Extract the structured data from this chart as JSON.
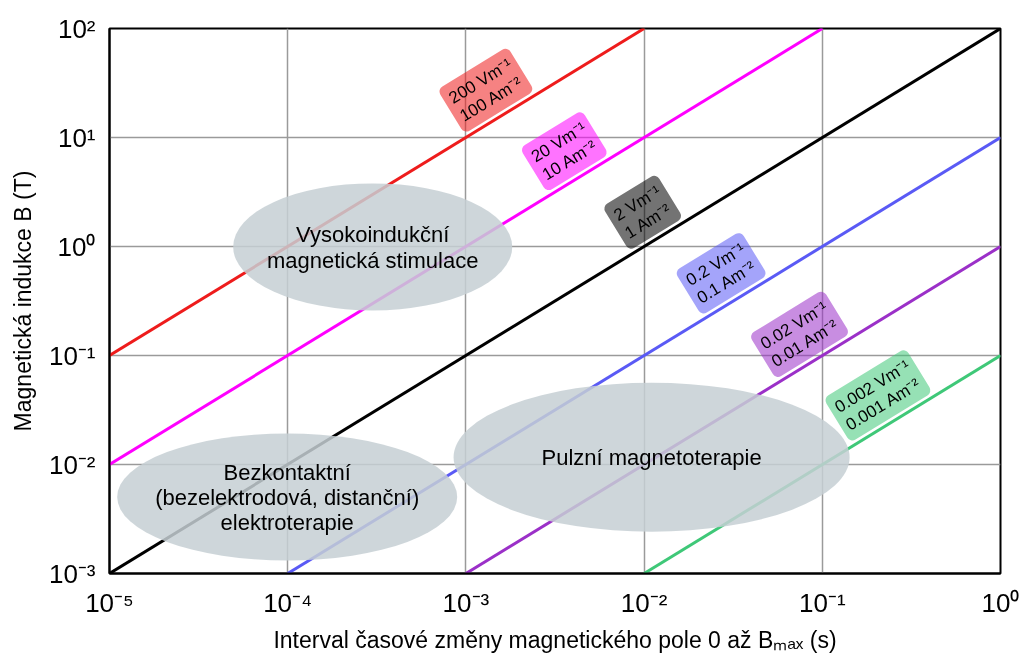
{
  "chart_data": {
    "type": "line",
    "xlabel": "Interval časové změny magnetického pole 0 až Bₘₐₓ (s)",
    "ylabel": "Magnetická indukce B (T)",
    "log": "xy",
    "xlim": [
      1e-05,
      1
    ],
    "ylim": [
      0.001,
      100
    ],
    "xticks": [
      {
        "value": 1e-05,
        "label": "10⁻⁵"
      },
      {
        "value": 0.0001,
        "label": "10⁻⁴"
      },
      {
        "value": 0.001,
        "label": "10⁻³"
      },
      {
        "value": 0.01,
        "label": "10⁻²"
      },
      {
        "value": 0.1,
        "label": "10⁻¹"
      },
      {
        "value": 1,
        "label": "10⁰"
      }
    ],
    "yticks": [
      {
        "value": 0.001,
        "label": "10⁻³"
      },
      {
        "value": 0.01,
        "label": "10⁻²"
      },
      {
        "value": 0.1,
        "label": "10⁻¹"
      },
      {
        "value": 1,
        "label": "10⁰"
      },
      {
        "value": 10,
        "label": "10¹"
      },
      {
        "value": 100,
        "label": "10²"
      }
    ],
    "grid": true,
    "line_style": "solid",
    "series": [
      {
        "name": "200 Vm⁻¹\n100 Am⁻²",
        "color": "#ee1c1c",
        "x": [
          1e-05,
          0.01
        ],
        "values": [
          0.1,
          100
        ]
      },
      {
        "name": "20 Vm⁻¹\n10 Am⁻²",
        "color": "#ff00ff",
        "x": [
          1e-05,
          0.1
        ],
        "values": [
          0.01,
          100
        ]
      },
      {
        "name": "2 Vm⁻¹\n1 Am⁻²",
        "color": "#000000",
        "x": [
          1e-05,
          1
        ],
        "values": [
          0.001,
          100
        ]
      },
      {
        "name": "0.2 Vm⁻¹\n0.1 Am⁻²",
        "color": "#5a5af5",
        "x": [
          0.0001,
          1
        ],
        "values": [
          0.001,
          10
        ]
      },
      {
        "name": "0.02 Vm⁻¹\n0.01 Am⁻²",
        "color": "#9b30c8",
        "x": [
          0.001,
          1
        ],
        "values": [
          0.001,
          1
        ]
      },
      {
        "name": "0.002 Vm⁻¹\n0.001 Am⁻²",
        "color": "#3fc878",
        "x": [
          0.01,
          1
        ],
        "values": [
          0.001,
          0.1
        ]
      }
    ],
    "annotations": [
      "Vysokoindukční\nmagnetická stimulace",
      "Bezkontaktní\n(bezelektrodová, distanční)\nelektroterapie",
      "Pulzní magnetoterapie"
    ]
  }
}
